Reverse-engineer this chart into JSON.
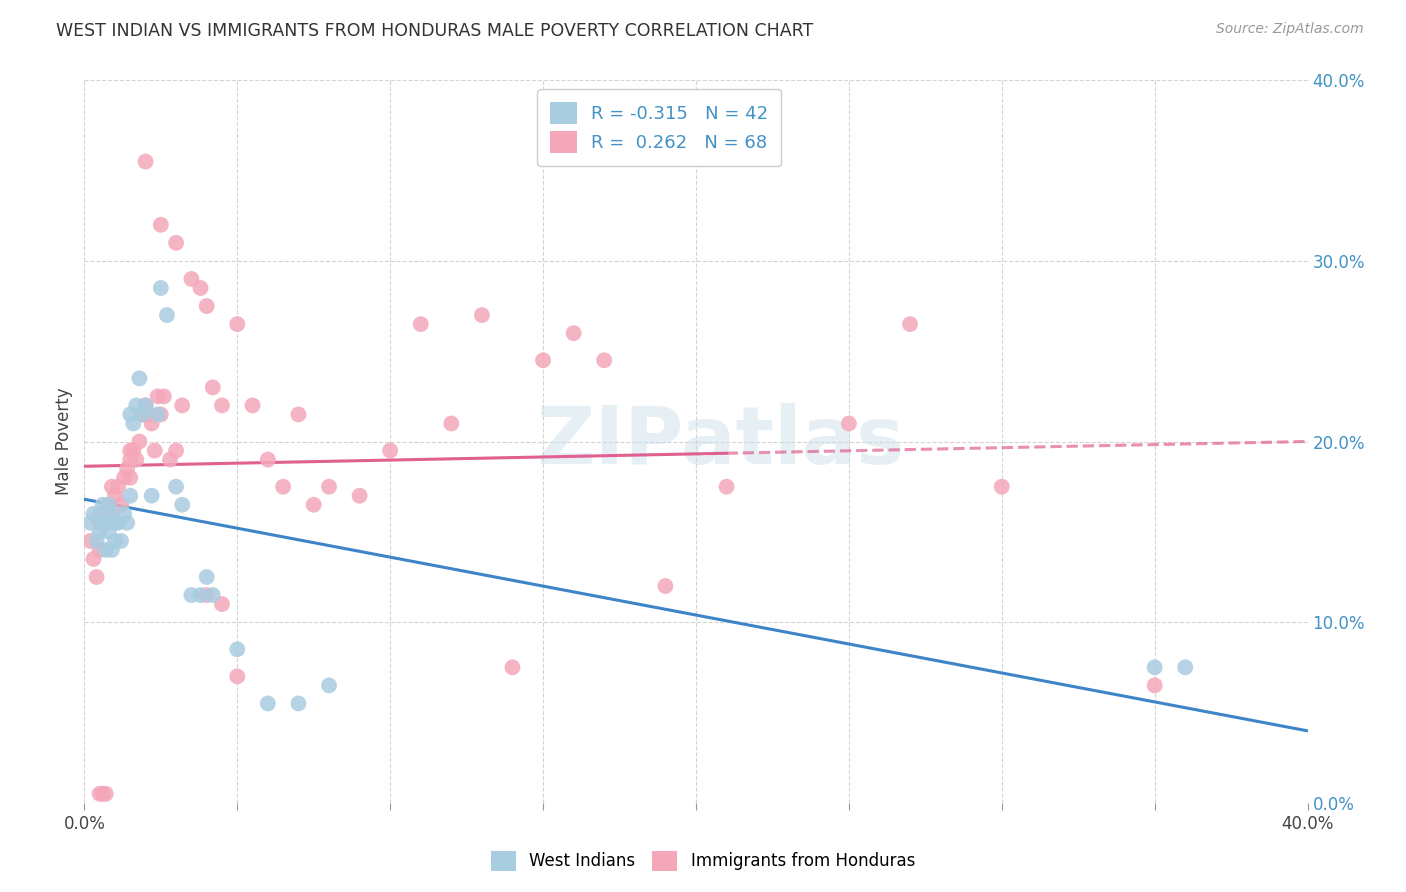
{
  "title": "WEST INDIAN VS IMMIGRANTS FROM HONDURAS MALE POVERTY CORRELATION CHART",
  "source": "Source: ZipAtlas.com",
  "ylabel": "Male Poverty",
  "legend_label1": "West Indians",
  "legend_label2": "Immigrants from Honduras",
  "r1": -0.315,
  "n1": 42,
  "r2": 0.262,
  "n2": 68,
  "color_blue": "#a8cce0",
  "color_pink": "#f4a7b9",
  "color_blue_line": "#3d85c8",
  "color_pink_line": "#e06090",
  "watermark": "ZIPatlas",
  "xlim": [
    0.0,
    0.4
  ],
  "ylim": [
    0.0,
    0.4
  ],
  "west_indians_x": [
    0.002,
    0.003,
    0.004,
    0.005,
    0.005,
    0.006,
    0.006,
    0.007,
    0.007,
    0.008,
    0.008,
    0.009,
    0.009,
    0.01,
    0.01,
    0.011,
    0.012,
    0.013,
    0.014,
    0.015,
    0.015,
    0.016,
    0.017,
    0.018,
    0.019,
    0.02,
    0.022,
    0.024,
    0.025,
    0.027,
    0.03,
    0.032,
    0.035,
    0.038,
    0.04,
    0.042,
    0.05,
    0.06,
    0.07,
    0.08,
    0.35,
    0.36
  ],
  "west_indians_y": [
    0.155,
    0.16,
    0.145,
    0.15,
    0.16,
    0.155,
    0.165,
    0.155,
    0.14,
    0.15,
    0.165,
    0.14,
    0.16,
    0.155,
    0.145,
    0.155,
    0.145,
    0.16,
    0.155,
    0.17,
    0.215,
    0.21,
    0.22,
    0.235,
    0.215,
    0.22,
    0.17,
    0.215,
    0.285,
    0.27,
    0.175,
    0.165,
    0.115,
    0.115,
    0.125,
    0.115,
    0.085,
    0.055,
    0.055,
    0.065,
    0.075,
    0.075
  ],
  "honduras_x": [
    0.002,
    0.003,
    0.004,
    0.005,
    0.005,
    0.006,
    0.007,
    0.008,
    0.009,
    0.01,
    0.011,
    0.012,
    0.013,
    0.014,
    0.015,
    0.015,
    0.016,
    0.017,
    0.018,
    0.019,
    0.02,
    0.021,
    0.022,
    0.023,
    0.024,
    0.025,
    0.026,
    0.028,
    0.03,
    0.032,
    0.035,
    0.038,
    0.04,
    0.042,
    0.045,
    0.05,
    0.055,
    0.06,
    0.065,
    0.07,
    0.075,
    0.08,
    0.09,
    0.1,
    0.11,
    0.12,
    0.13,
    0.15,
    0.17,
    0.19,
    0.21,
    0.25,
    0.005,
    0.006,
    0.007,
    0.008,
    0.015,
    0.02,
    0.025,
    0.03,
    0.04,
    0.045,
    0.05,
    0.14,
    0.16,
    0.27,
    0.3,
    0.35
  ],
  "honduras_y": [
    0.145,
    0.135,
    0.125,
    0.14,
    0.155,
    0.16,
    0.155,
    0.165,
    0.175,
    0.17,
    0.175,
    0.165,
    0.18,
    0.185,
    0.18,
    0.195,
    0.195,
    0.19,
    0.2,
    0.215,
    0.22,
    0.215,
    0.21,
    0.195,
    0.225,
    0.215,
    0.225,
    0.19,
    0.195,
    0.22,
    0.29,
    0.285,
    0.275,
    0.23,
    0.22,
    0.265,
    0.22,
    0.19,
    0.175,
    0.215,
    0.165,
    0.175,
    0.17,
    0.195,
    0.265,
    0.21,
    0.27,
    0.245,
    0.245,
    0.12,
    0.175,
    0.21,
    0.005,
    0.005,
    0.005,
    0.16,
    0.19,
    0.355,
    0.32,
    0.31,
    0.115,
    0.11,
    0.07,
    0.075,
    0.26,
    0.265,
    0.175,
    0.065
  ],
  "pink_solid_xlim": [
    0.0,
    0.21
  ],
  "pink_dashed_xlim": [
    0.21,
    0.4
  ]
}
